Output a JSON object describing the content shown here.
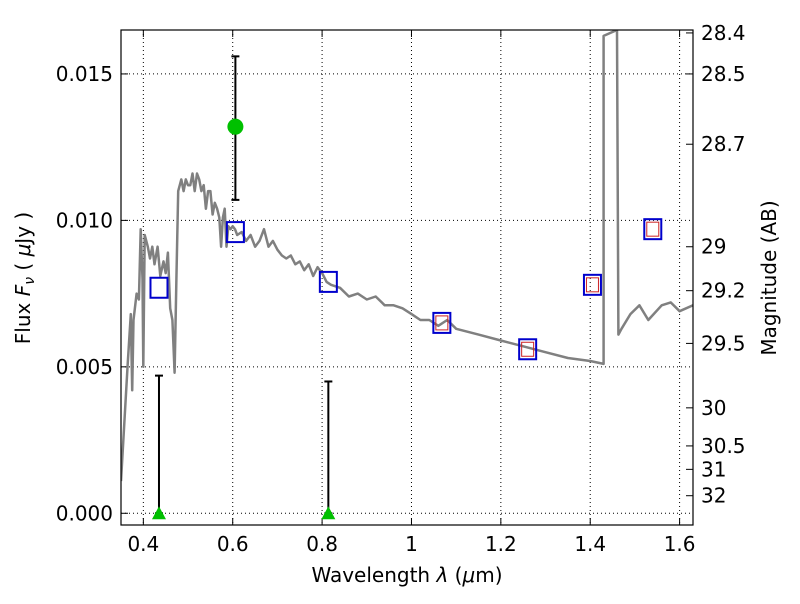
{
  "chart_data": {
    "type": "scatter",
    "xlabel": "Wavelength  λ (μm)",
    "ylabel": "Flux  Fν  ( μJy )",
    "y2label": "Magnitude (AB)",
    "xlim": [
      0.35,
      1.63
    ],
    "ylim": [
      -0.0004,
      0.0165
    ],
    "grid": true,
    "xticks": [
      {
        "value": 0.4,
        "label": "0.4"
      },
      {
        "value": 0.6,
        "label": "0.6"
      },
      {
        "value": 0.8,
        "label": "0.8"
      },
      {
        "value": 1.0,
        "label": "1"
      },
      {
        "value": 1.2,
        "label": "1.2"
      },
      {
        "value": 1.4,
        "label": "1.4"
      },
      {
        "value": 1.6,
        "label": "1.6"
      }
    ],
    "yticks": [
      {
        "value": 0.0,
        "label": "0.000"
      },
      {
        "value": 0.005,
        "label": "0.005"
      },
      {
        "value": 0.01,
        "label": "0.010"
      },
      {
        "value": 0.015,
        "label": "0.015"
      }
    ],
    "magnitude_ticks": [
      {
        "flux": 0.0164,
        "label": "28.4"
      },
      {
        "flux": 0.015,
        "label": "28.5"
      },
      {
        "flux": 0.0126,
        "label": "28.7"
      },
      {
        "flux": 0.0091,
        "label": "29"
      },
      {
        "flux": 0.0076,
        "label": "29.2"
      },
      {
        "flux": 0.0058,
        "label": "29.5"
      },
      {
        "flux": 0.0036,
        "label": "30"
      },
      {
        "flux": 0.0023,
        "label": "30.5"
      },
      {
        "flux": 0.0015,
        "label": "31"
      },
      {
        "flux": 0.0006,
        "label": "32"
      }
    ],
    "template_spectrum": {
      "color": "#808080",
      "points": [
        [
          0.35,
          0.0011
        ],
        [
          0.365,
          0.0051
        ],
        [
          0.372,
          0.0068
        ],
        [
          0.375,
          0.0042
        ],
        [
          0.378,
          0.0066
        ],
        [
          0.385,
          0.0075
        ],
        [
          0.39,
          0.0073
        ],
        [
          0.394,
          0.0097
        ],
        [
          0.398,
          0.008
        ],
        [
          0.4,
          0.005
        ],
        [
          0.403,
          0.0095
        ],
        [
          0.41,
          0.0091
        ],
        [
          0.415,
          0.0087
        ],
        [
          0.42,
          0.0091
        ],
        [
          0.425,
          0.0085
        ],
        [
          0.432,
          0.0091
        ],
        [
          0.438,
          0.0081
        ],
        [
          0.445,
          0.0086
        ],
        [
          0.45,
          0.0082
        ],
        [
          0.455,
          0.0089
        ],
        [
          0.46,
          0.007
        ],
        [
          0.465,
          0.0066
        ],
        [
          0.47,
          0.0048
        ],
        [
          0.474,
          0.008
        ],
        [
          0.478,
          0.011
        ],
        [
          0.485,
          0.0114
        ],
        [
          0.49,
          0.011
        ],
        [
          0.495,
          0.0114
        ],
        [
          0.5,
          0.0112
        ],
        [
          0.505,
          0.0112
        ],
        [
          0.51,
          0.0116
        ],
        [
          0.515,
          0.011
        ],
        [
          0.52,
          0.0116
        ],
        [
          0.525,
          0.0114
        ],
        [
          0.53,
          0.011
        ],
        [
          0.535,
          0.0112
        ],
        [
          0.54,
          0.0104
        ],
        [
          0.545,
          0.011
        ],
        [
          0.55,
          0.011
        ],
        [
          0.555,
          0.0102
        ],
        [
          0.56,
          0.0106
        ],
        [
          0.565,
          0.0104
        ],
        [
          0.57,
          0.0101
        ],
        [
          0.574,
          0.0091
        ],
        [
          0.578,
          0.0101
        ],
        [
          0.582,
          0.0104
        ],
        [
          0.586,
          0.0091
        ],
        [
          0.59,
          0.0098
        ],
        [
          0.595,
          0.0097
        ],
        [
          0.6,
          0.0098
        ],
        [
          0.605,
          0.0097
        ],
        [
          0.61,
          0.0095
        ],
        [
          0.62,
          0.0096
        ],
        [
          0.63,
          0.0093
        ],
        [
          0.64,
          0.0095
        ],
        [
          0.65,
          0.0091
        ],
        [
          0.66,
          0.0093
        ],
        [
          0.67,
          0.0097
        ],
        [
          0.68,
          0.0091
        ],
        [
          0.69,
          0.0093
        ],
        [
          0.7,
          0.009
        ],
        [
          0.71,
          0.0088
        ],
        [
          0.72,
          0.0087
        ],
        [
          0.73,
          0.0088
        ],
        [
          0.74,
          0.0085
        ],
        [
          0.75,
          0.0086
        ],
        [
          0.76,
          0.0083
        ],
        [
          0.77,
          0.0085
        ],
        [
          0.78,
          0.0081
        ],
        [
          0.79,
          0.0084
        ],
        [
          0.8,
          0.0082
        ],
        [
          0.81,
          0.0079
        ],
        [
          0.82,
          0.0078
        ],
        [
          0.84,
          0.0077
        ],
        [
          0.86,
          0.0074
        ],
        [
          0.88,
          0.0075
        ],
        [
          0.9,
          0.0073
        ],
        [
          0.92,
          0.0074
        ],
        [
          0.94,
          0.0071
        ],
        [
          0.96,
          0.0071
        ],
        [
          0.98,
          0.007
        ],
        [
          1.0,
          0.0068
        ],
        [
          1.02,
          0.0066
        ],
        [
          1.04,
          0.0066
        ],
        [
          1.06,
          0.0064
        ],
        [
          1.08,
          0.0066
        ],
        [
          1.1,
          0.0063
        ],
        [
          1.15,
          0.0061
        ],
        [
          1.2,
          0.0059
        ],
        [
          1.25,
          0.0057
        ],
        [
          1.3,
          0.0055
        ],
        [
          1.35,
          0.0053
        ],
        [
          1.4,
          0.0052
        ],
        [
          1.43,
          0.0051
        ],
        [
          1.43,
          0.0163
        ],
        [
          1.46,
          0.0165
        ],
        [
          1.463,
          0.0061
        ],
        [
          1.47,
          0.0063
        ],
        [
          1.49,
          0.0068
        ],
        [
          1.51,
          0.0071
        ],
        [
          1.53,
          0.0066
        ],
        [
          1.56,
          0.0071
        ],
        [
          1.58,
          0.0072
        ],
        [
          1.6,
          0.0069
        ],
        [
          1.63,
          0.0071
        ]
      ]
    },
    "observed_detection": {
      "color": "#00c000",
      "x": 0.606,
      "y": 0.0132,
      "err_low": 0.0107,
      "err_high": 0.0156
    },
    "upper_limits": {
      "color": "#00c000",
      "points": [
        {
          "x": 0.435,
          "y": 0.0,
          "err_high": 0.0047
        },
        {
          "x": 0.814,
          "y": 0.0,
          "err_high": 0.0045
        }
      ]
    },
    "model_photometry": {
      "color": "#0000cc",
      "points": [
        [
          0.435,
          0.0077
        ],
        [
          0.606,
          0.0096
        ],
        [
          0.814,
          0.0079
        ],
        [
          1.068,
          0.0065
        ],
        [
          1.26,
          0.0056
        ],
        [
          1.405,
          0.0078
        ],
        [
          1.54,
          0.0097
        ]
      ]
    },
    "model_photometry_inner": {
      "color": "#cc2222",
      "points": [
        [
          1.068,
          0.0065
        ],
        [
          1.26,
          0.0056
        ],
        [
          1.405,
          0.0078
        ],
        [
          1.54,
          0.0097
        ]
      ]
    }
  }
}
